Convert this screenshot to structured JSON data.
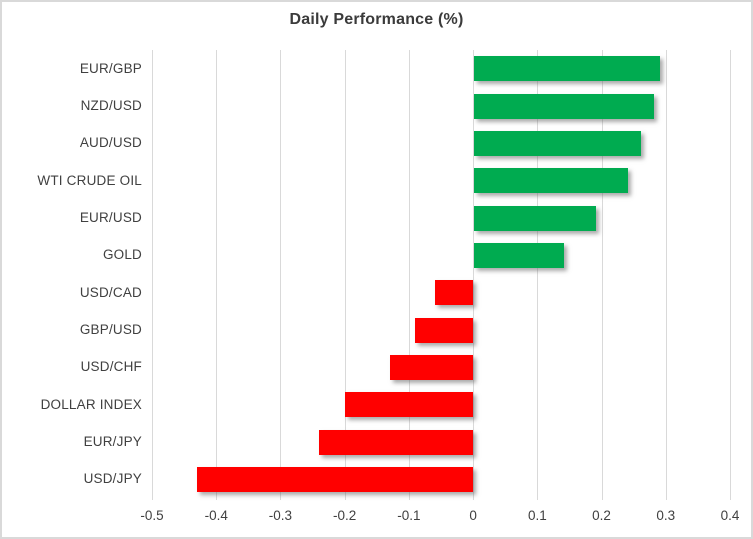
{
  "window": {
    "background": "#FFFFFF",
    "border_color": "#D9D9D9"
  },
  "chart_data": {
    "type": "bar",
    "orientation": "horizontal",
    "title": "Daily Performance (%)",
    "categories": [
      "EUR/GBP",
      "NZD/USD",
      "AUD/USD",
      "WTI CRUDE OIL",
      "EUR/USD",
      "GOLD",
      "USD/CAD",
      "GBP/USD",
      "USD/CHF",
      "DOLLAR INDEX",
      "EUR/JPY",
      "USD/JPY"
    ],
    "values": [
      0.29,
      0.28,
      0.26,
      0.24,
      0.19,
      0.14,
      -0.06,
      -0.09,
      -0.13,
      -0.2,
      -0.24,
      -0.43
    ],
    "x_ticks": [
      -0.5,
      -0.4,
      -0.3,
      -0.2,
      -0.1,
      0,
      0.1,
      0.2,
      0.3,
      0.4
    ],
    "x_tick_labels": [
      "-0.5",
      "-0.4",
      "-0.3",
      "-0.2",
      "-0.1",
      "0",
      "0.1",
      "0.2",
      "0.3",
      "0.4"
    ],
    "xlim": [
      -0.5,
      0.4
    ],
    "xlabel": "",
    "ylabel": "",
    "grid": true,
    "legend": false,
    "colors": {
      "positive": "#00AB50",
      "negative": "#FF0000",
      "gridline": "#D9D9D9",
      "title_text": "#3B3B3B",
      "label_text": "#404040"
    }
  }
}
